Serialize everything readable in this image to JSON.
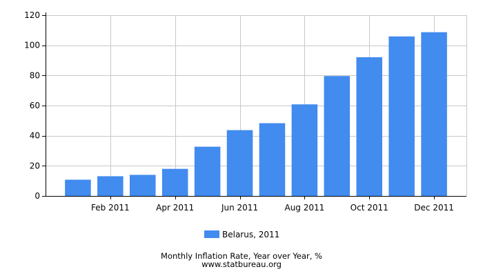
{
  "chart_data": {
    "type": "bar",
    "title": "Monthly Inflation Rate, Year over Year, %",
    "source": "www.statbureau.org",
    "categories": [
      "Jan 2011",
      "Feb 2011",
      "Mar 2011",
      "Apr 2011",
      "May 2011",
      "Jun 2011",
      "Jul 2011",
      "Aug 2011",
      "Sep 2011",
      "Oct 2011",
      "Nov 2011",
      "Dec 2011"
    ],
    "x_tick_labels": [
      "Feb 2011",
      "Apr 2011",
      "Jun 2011",
      "Aug 2011",
      "Oct 2011",
      "Dec 2011"
    ],
    "series": [
      {
        "name": "Belarus, 2011",
        "values": [
          10.8,
          13.1,
          14.0,
          18.0,
          32.7,
          43.7,
          48.3,
          60.8,
          79.6,
          92.1,
          105.9,
          108.7
        ]
      }
    ],
    "ylim": [
      0,
      120
    ],
    "yticks": [
      0,
      20,
      40,
      60,
      80,
      100,
      120
    ],
    "grid": true,
    "legend_position": "bottom-center",
    "bar_color": "#428bef",
    "grid_color": "#c8c8c8"
  }
}
